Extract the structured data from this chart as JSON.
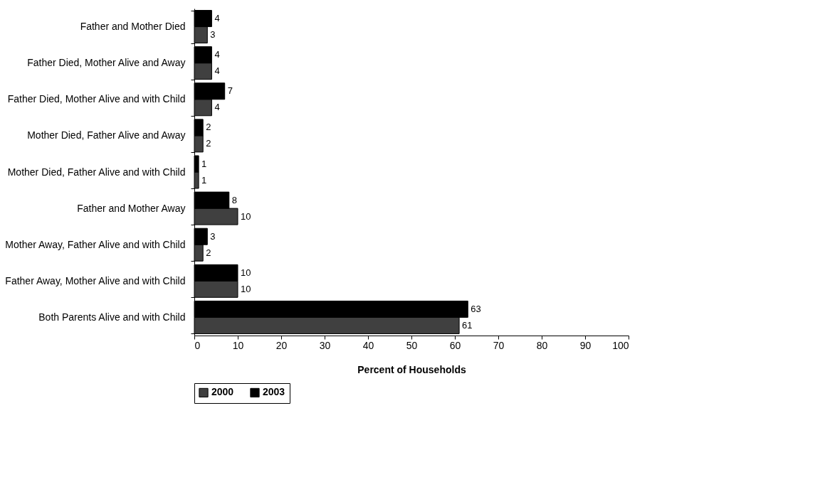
{
  "chart_data": {
    "type": "bar",
    "orientation": "horizontal",
    "xlabel": "Percent of Households",
    "categories": [
      "Father and Mother Died",
      "Father Died, Mother Alive and Away",
      "Father Died, Mother Alive and with Child",
      "Mother Died, Father Alive and Away",
      "Mother Died, Father Alive and with Child",
      "Father and Mother Away",
      "Mother Away, Father Alive and with Child",
      "Father Away, Mother Alive and with Child",
      "Both Parents Alive and with Child"
    ],
    "series": [
      {
        "name": "2000",
        "color": "#404040",
        "values": [
          3,
          4,
          4,
          2,
          1,
          10,
          2,
          10,
          61
        ]
      },
      {
        "name": "2003",
        "color": "#000000",
        "values": [
          4,
          4,
          7,
          2,
          1,
          8,
          3,
          10,
          63
        ]
      }
    ],
    "xlim": [
      0,
      100
    ],
    "xticks": [
      0,
      10,
      20,
      30,
      40,
      50,
      60,
      70,
      80,
      90,
      100
    ],
    "grid": false,
    "legend": "bottom",
    "data_labels": true
  }
}
